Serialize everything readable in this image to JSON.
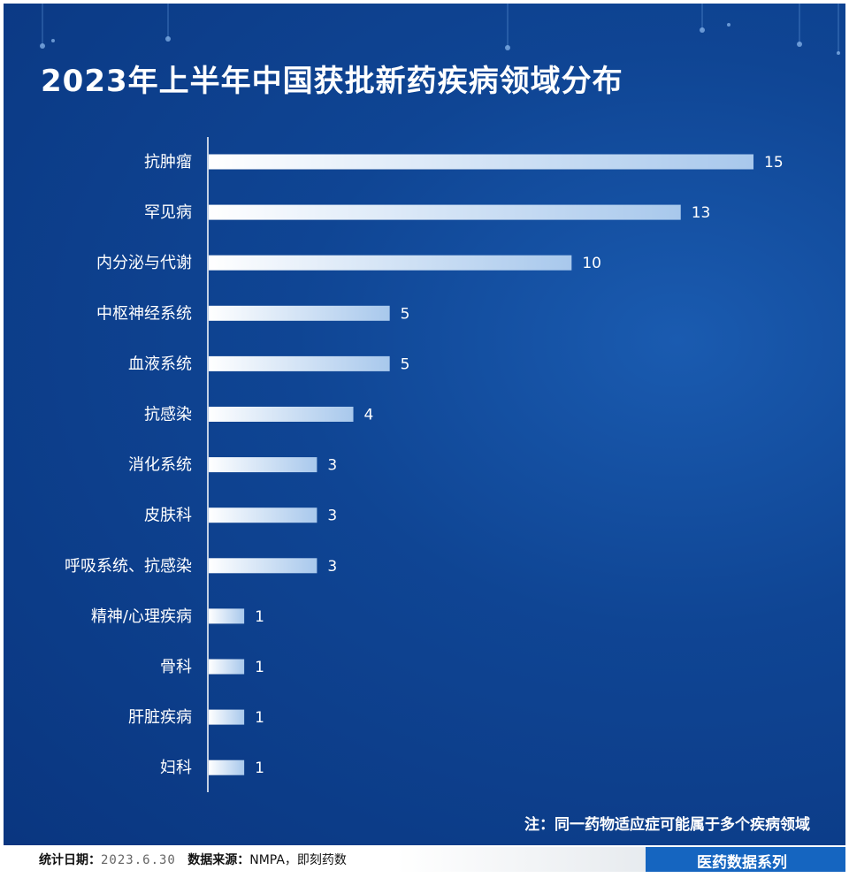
{
  "title": "2023年上半年中国获批新药疾病领域分布",
  "chart_data": {
    "type": "bar",
    "orientation": "horizontal",
    "title": "2023年上半年中国获批新药疾病领域分布",
    "categories": [
      "抗肿瘤",
      "罕见病",
      "内分泌与代谢",
      "中枢神经系统",
      "血液系统",
      "抗感染",
      "消化系统",
      "皮肤科",
      "呼吸系统、抗感染",
      "精神/心理疾病",
      "骨科",
      "肝脏疾病",
      "妇科"
    ],
    "values": [
      15,
      13,
      10,
      5,
      5,
      4,
      3,
      3,
      3,
      1,
      1,
      1,
      1
    ],
    "xlim": [
      0,
      15
    ],
    "xlabel": "",
    "ylabel": ""
  },
  "note": "注：同一药物适应症可能属于多个疾病领域",
  "footer": {
    "date_label": "统计日期：",
    "date_value": "2023.6.30",
    "source_label": "数据来源：",
    "source_value": "NMPA，即刻药数",
    "series_label": "医药数据系列"
  },
  "colors": {
    "background": "#0f4594",
    "bar_start": "#ffffff",
    "bar_end": "#9fc2e8",
    "footer_accent": "#1565c0"
  }
}
